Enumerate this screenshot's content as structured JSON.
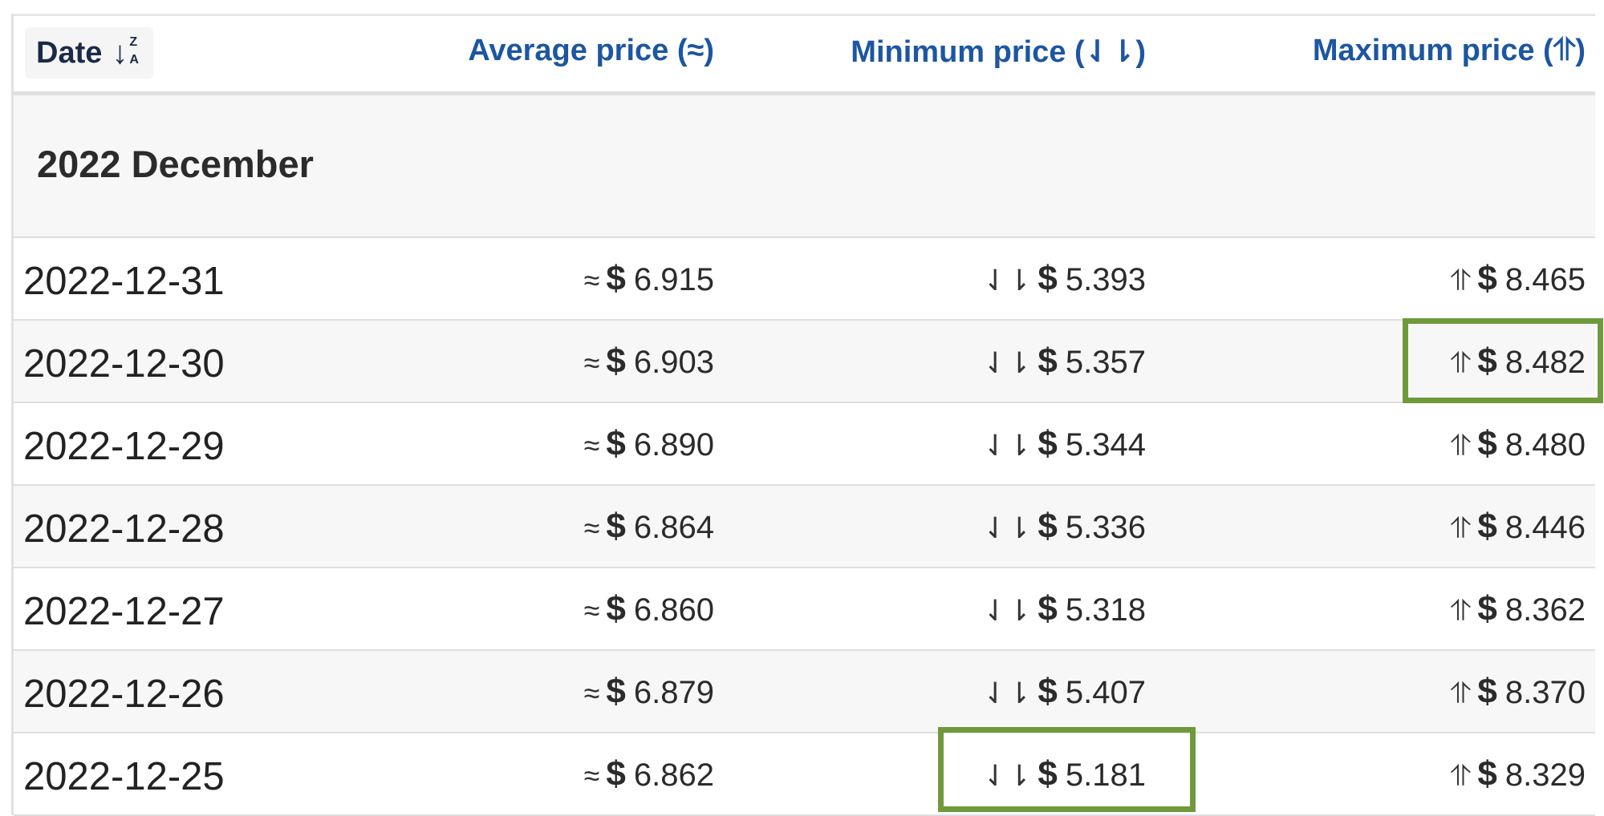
{
  "header": {
    "date_label": "Date",
    "sort_icon_name": "sort-descending-za-icon",
    "sort_top_letter": "Z",
    "sort_bottom_letter": "A",
    "average_label": "Average price (≈)",
    "minimum_label": "Minimum price (⇃⇂)",
    "maximum_label": "Maximum price (⥣)"
  },
  "month_group": {
    "label": "2022 December"
  },
  "symbols": {
    "avg": "≈",
    "min": "⇃⇂",
    "max": "⥣",
    "currency": "$"
  },
  "highlight_color": "#6f9a3b",
  "rows": [
    {
      "date": "2022-12-31",
      "avg": "6.915",
      "min": "5.393",
      "max": "8.465"
    },
    {
      "date": "2022-12-30",
      "avg": "6.903",
      "min": "5.357",
      "max": "8.482"
    },
    {
      "date": "2022-12-29",
      "avg": "6.890",
      "min": "5.344",
      "max": "8.480"
    },
    {
      "date": "2022-12-28",
      "avg": "6.864",
      "min": "5.336",
      "max": "8.446"
    },
    {
      "date": "2022-12-27",
      "avg": "6.860",
      "min": "5.318",
      "max": "8.362"
    },
    {
      "date": "2022-12-26",
      "avg": "6.879",
      "min": "5.407",
      "max": "8.370"
    },
    {
      "date": "2022-12-25",
      "avg": "6.862",
      "min": "5.181",
      "max": "8.329"
    }
  ]
}
